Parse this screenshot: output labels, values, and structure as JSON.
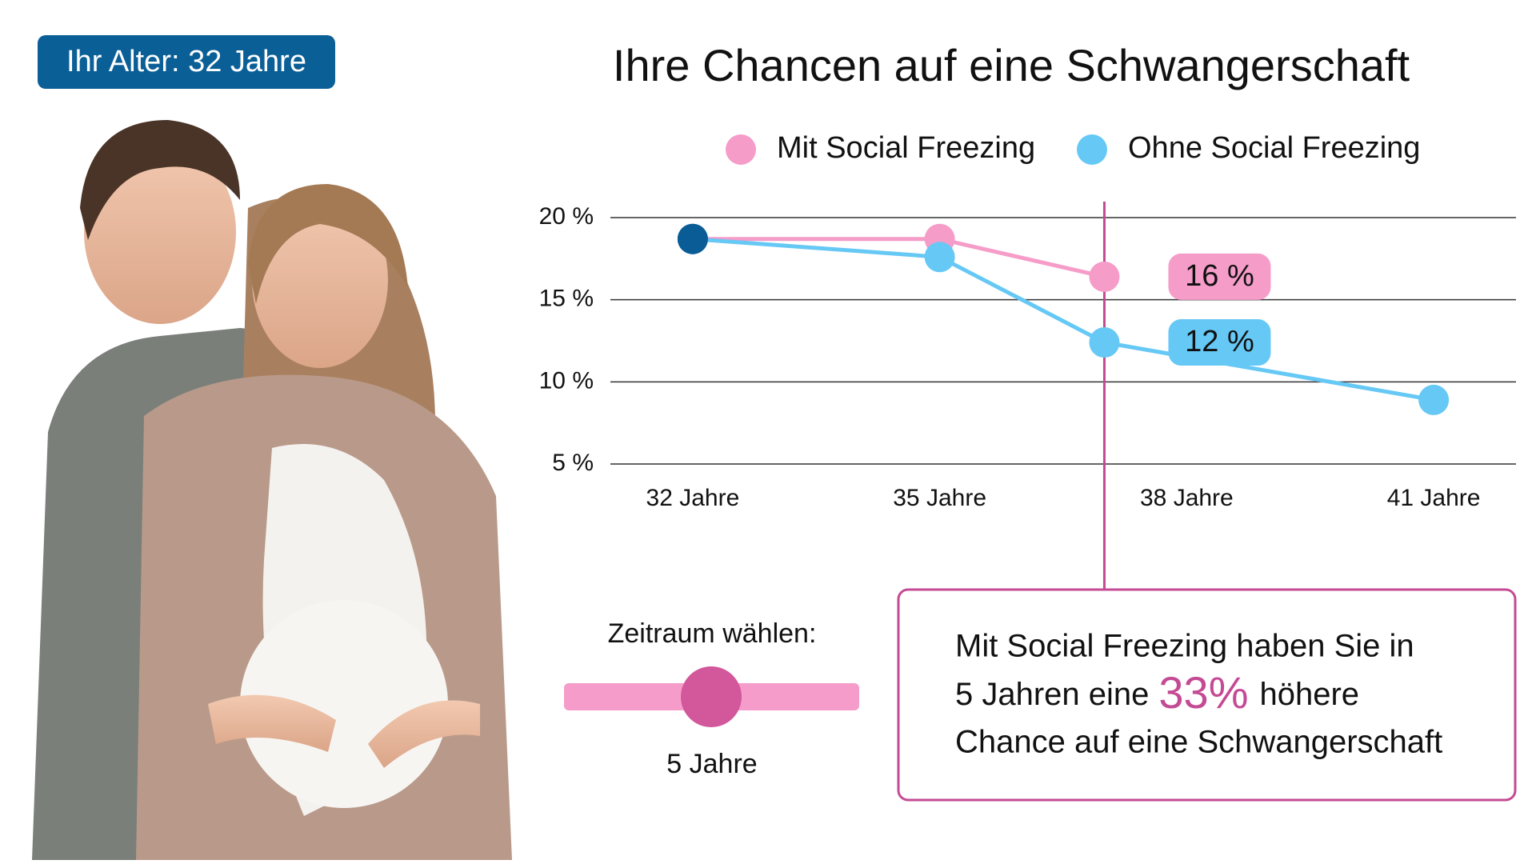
{
  "badge": "Ihr Alter: 32 Jahre",
  "chart_data": {
    "type": "line",
    "title": "Ihre Chancen auf eine Schwangerschaft",
    "x": [
      32,
      35,
      37,
      41
    ],
    "series": [
      {
        "name": "Mit Social Freezing",
        "color": "#f59cc9",
        "values": [
          18.7,
          18.7,
          16.4,
          null
        ],
        "value_labels": [
          null,
          null,
          "16 %",
          null
        ]
      },
      {
        "name": "Ohne Social Freezing",
        "color": "#66c8f5",
        "values": [
          18.7,
          17.6,
          12.4,
          8.9
        ],
        "value_labels": [
          null,
          null,
          "12 %",
          null
        ]
      }
    ],
    "start_color": "#0a5c96",
    "marker_x": 37,
    "marker_color": "#c44a94",
    "xlim": [
      31,
      42
    ],
    "xticks": [
      {
        "value": 32,
        "label": "32 Jahre"
      },
      {
        "value": 35,
        "label": "35 Jahre"
      },
      {
        "value": 38,
        "label": "38 Jahre"
      },
      {
        "value": 41,
        "label": "41 Jahre"
      }
    ],
    "ylim": [
      5,
      20
    ],
    "yticks": [
      {
        "value": 5,
        "label": "5 %"
      },
      {
        "value": 10,
        "label": "10 %"
      },
      {
        "value": 15,
        "label": "15 %"
      },
      {
        "value": 20,
        "label": "20 %"
      }
    ],
    "grid": true
  },
  "slider": {
    "label": "Zeitraum wählen:",
    "value": "5 Jahre"
  },
  "info": {
    "line1": "Mit Social Freezing haben Sie in",
    "line2_start": "5 Jahren eine",
    "highlight": "33%",
    "line2_end": "höhere",
    "line3": "Chance auf eine Schwangerschaft"
  }
}
